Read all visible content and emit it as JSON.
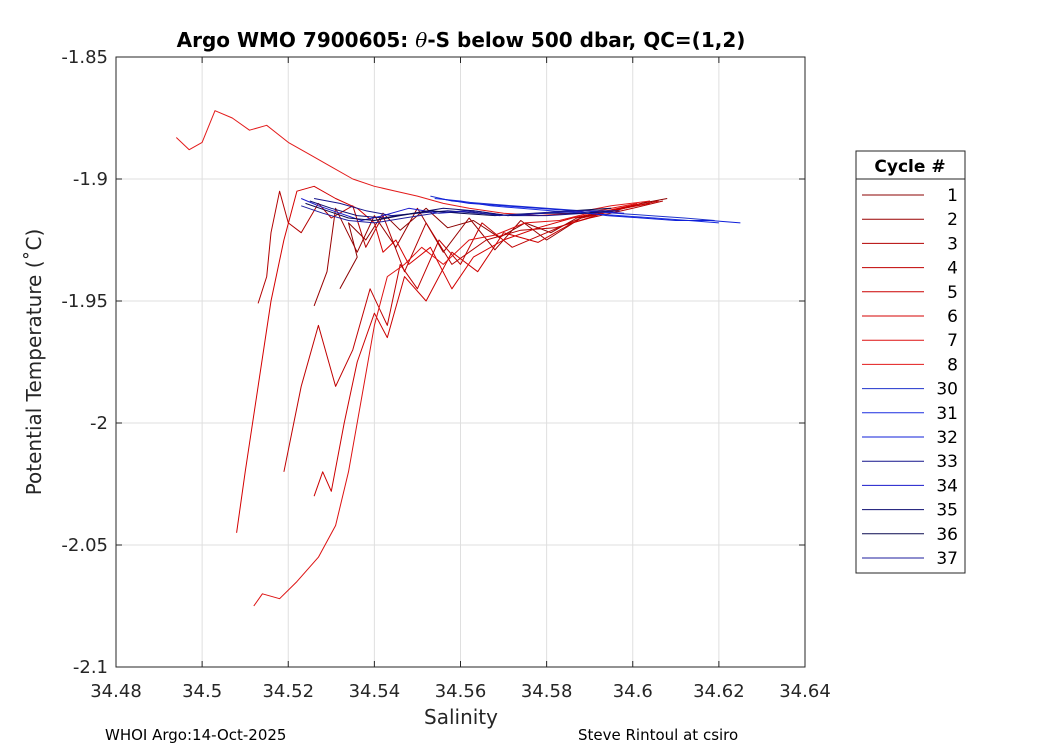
{
  "chart_data": {
    "type": "line",
    "title_prefix": "Argo WMO 7900605: ",
    "title_theta": "θ",
    "title_suffix": "-S below 500 dbar,  QC=(1,2)",
    "xlabel": "Salinity",
    "ylabel": "Potential Temperature (˚C)",
    "xlim": [
      34.48,
      34.64
    ],
    "ylim": [
      -2.1,
      -1.85
    ],
    "xticks": [
      "34.48",
      "34.5",
      "34.52",
      "34.54",
      "34.56",
      "34.58",
      "34.6",
      "34.62",
      "34.64"
    ],
    "yticks": [
      "-1.85",
      "-1.9",
      "-1.95",
      "-2",
      "-2.05",
      "-2.1"
    ],
    "grid": true,
    "legend_title": "Cycle #",
    "legend_position": "outside-right",
    "series": [
      {
        "name": "1",
        "color": "#8b0000",
        "x": [
          34.532,
          34.536,
          34.534,
          34.538,
          34.542,
          34.546,
          34.552,
          34.557,
          34.563,
          34.569,
          34.575,
          34.581,
          34.587,
          34.595,
          34.602,
          34.608
        ],
        "y": [
          -1.945,
          -1.932,
          -1.918,
          -1.925,
          -1.914,
          -1.921,
          -1.912,
          -1.92,
          -1.917,
          -1.924,
          -1.918,
          -1.922,
          -1.916,
          -1.913,
          -1.91,
          -1.908
        ]
      },
      {
        "name": "2",
        "color": "#990000",
        "x": [
          34.526,
          34.529,
          34.531,
          34.536,
          34.54,
          34.545,
          34.55,
          34.556,
          34.562,
          34.568,
          34.574,
          34.58,
          34.588,
          34.596,
          34.604
        ],
        "y": [
          -1.952,
          -1.938,
          -1.912,
          -1.93,
          -1.915,
          -1.928,
          -1.912,
          -1.93,
          -1.916,
          -1.929,
          -1.917,
          -1.925,
          -1.916,
          -1.913,
          -1.909
        ]
      },
      {
        "name": "3",
        "color": "#b30000",
        "x": [
          34.513,
          34.515,
          34.516,
          34.518,
          34.52,
          34.523,
          34.527,
          34.53,
          34.535,
          34.538,
          34.542,
          34.547,
          34.552,
          34.558,
          34.566,
          34.574,
          34.582,
          34.59,
          34.6,
          34.607
        ],
        "y": [
          -1.951,
          -1.94,
          -1.922,
          -1.905,
          -1.918,
          -1.922,
          -1.91,
          -1.916,
          -1.911,
          -1.928,
          -1.915,
          -1.938,
          -1.918,
          -1.935,
          -1.925,
          -1.921,
          -1.92,
          -1.916,
          -1.912,
          -1.909
        ]
      },
      {
        "name": "4",
        "color": "#c00000",
        "x": [
          34.519,
          34.523,
          34.527,
          34.531,
          34.535,
          34.539,
          34.543,
          34.546,
          34.55,
          34.555,
          34.56,
          34.565,
          34.572,
          34.58,
          34.588,
          34.598,
          34.606
        ],
        "y": [
          -2.02,
          -1.985,
          -1.96,
          -1.985,
          -1.97,
          -1.945,
          -1.96,
          -1.935,
          -1.945,
          -1.925,
          -1.935,
          -1.918,
          -1.928,
          -1.922,
          -1.916,
          -1.912,
          -1.909
        ]
      },
      {
        "name": "5",
        "color": "#cc0000",
        "x": [
          34.526,
          34.528,
          34.53,
          34.533,
          34.536,
          34.54,
          34.543,
          34.547,
          34.552,
          34.558,
          34.564,
          34.57,
          34.578,
          34.586,
          34.595,
          34.604
        ],
        "y": [
          -2.03,
          -2.02,
          -2.028,
          -2.0,
          -1.975,
          -1.955,
          -1.965,
          -1.94,
          -1.95,
          -1.93,
          -1.938,
          -1.922,
          -1.926,
          -1.918,
          -1.913,
          -1.91
        ]
      },
      {
        "name": "6",
        "color": "#d40000",
        "x": [
          34.508,
          34.51,
          34.513,
          34.516,
          34.519,
          34.522,
          34.526,
          34.531,
          34.536,
          34.54,
          34.542,
          34.545,
          34.548,
          34.553,
          34.558,
          34.563,
          34.57,
          34.578,
          34.586,
          34.594,
          34.602
        ],
        "y": [
          -2.045,
          -2.02,
          -1.985,
          -1.95,
          -1.925,
          -1.905,
          -1.903,
          -1.908,
          -1.912,
          -1.918,
          -1.93,
          -1.925,
          -1.935,
          -1.928,
          -1.945,
          -1.932,
          -1.925,
          -1.92,
          -1.916,
          -1.913,
          -1.91
        ]
      },
      {
        "name": "7",
        "color": "#dd1111",
        "x": [
          34.512,
          34.514,
          34.518,
          34.522,
          34.527,
          34.531,
          34.534,
          34.537,
          34.54,
          34.543,
          34.547,
          34.551,
          34.556,
          34.562,
          34.568,
          34.575,
          34.583,
          34.592,
          34.601
        ],
        "y": [
          -2.075,
          -2.07,
          -2.072,
          -2.065,
          -2.055,
          -2.042,
          -2.02,
          -1.99,
          -1.96,
          -1.94,
          -1.935,
          -1.928,
          -1.935,
          -1.925,
          -1.923,
          -1.918,
          -1.917,
          -1.913,
          -1.91
        ]
      },
      {
        "name": "8",
        "color": "#e31a1a",
        "x": [
          34.494,
          34.497,
          34.5,
          34.503,
          34.507,
          34.511,
          34.515,
          34.52,
          34.525,
          34.53,
          34.535,
          34.54,
          34.545,
          34.55,
          34.556,
          34.562,
          34.57,
          34.578,
          34.586,
          34.595,
          34.604
        ],
        "y": [
          -1.883,
          -1.888,
          -1.885,
          -1.872,
          -1.875,
          -1.88,
          -1.878,
          -1.885,
          -1.89,
          -1.895,
          -1.9,
          -1.903,
          -1.905,
          -1.907,
          -1.91,
          -1.912,
          -1.914,
          -1.915,
          -1.914,
          -1.911,
          -1.909
        ]
      },
      {
        "name": "30",
        "color": "#1f33cc",
        "x": [
          34.553,
          34.558,
          34.565,
          34.572,
          34.58,
          34.588,
          34.596,
          34.604,
          34.612,
          34.619
        ],
        "y": [
          -1.907,
          -1.909,
          -1.91,
          -1.911,
          -1.912,
          -1.913,
          -1.914,
          -1.915,
          -1.916,
          -1.917
        ]
      },
      {
        "name": "31",
        "color": "#1a2ee0",
        "x": [
          34.554,
          34.56,
          34.567,
          34.574,
          34.581,
          34.589,
          34.597,
          34.605,
          34.613,
          34.62
        ],
        "y": [
          -1.908,
          -1.909,
          -1.911,
          -1.912,
          -1.913,
          -1.914,
          -1.915,
          -1.916,
          -1.917,
          -1.918
        ]
      },
      {
        "name": "32",
        "color": "#0f1fd9",
        "x": [
          34.555,
          34.562,
          34.57,
          34.578,
          34.586,
          34.594,
          34.602,
          34.61,
          34.618,
          34.625
        ],
        "y": [
          -1.908,
          -1.91,
          -1.911,
          -1.912,
          -1.913,
          -1.915,
          -1.916,
          -1.917,
          -1.917,
          -1.918
        ]
      },
      {
        "name": "33",
        "color": "#14148c",
        "x": [
          34.526,
          34.532,
          34.538,
          34.544,
          34.55,
          34.557,
          34.564,
          34.572,
          34.58,
          34.589,
          34.597
        ],
        "y": [
          -1.908,
          -1.91,
          -1.913,
          -1.915,
          -1.914,
          -1.913,
          -1.914,
          -1.915,
          -1.915,
          -1.914,
          -1.913
        ]
      },
      {
        "name": "34",
        "color": "#1a1acc",
        "x": [
          34.523,
          34.527,
          34.532,
          34.537,
          34.542,
          34.548,
          34.555,
          34.563,
          34.571,
          34.58,
          34.589,
          34.598
        ],
        "y": [
          -1.908,
          -1.911,
          -1.914,
          -1.917,
          -1.915,
          -1.912,
          -1.914,
          -1.913,
          -1.915,
          -1.914,
          -1.913,
          -1.914
        ]
      },
      {
        "name": "35",
        "color": "#0d0d70",
        "x": [
          34.525,
          34.53,
          34.536,
          34.542,
          34.549,
          34.556,
          34.563,
          34.571,
          34.579,
          34.588,
          34.596
        ],
        "y": [
          -1.909,
          -1.912,
          -1.915,
          -1.916,
          -1.914,
          -1.912,
          -1.913,
          -1.915,
          -1.914,
          -1.914,
          -1.913
        ]
      },
      {
        "name": "36",
        "color": "#0a0a50",
        "x": [
          34.524,
          34.529,
          34.534,
          34.54,
          34.546,
          34.553,
          34.56,
          34.568,
          34.577,
          34.586,
          34.595
        ],
        "y": [
          -1.91,
          -1.913,
          -1.916,
          -1.917,
          -1.915,
          -1.913,
          -1.914,
          -1.915,
          -1.914,
          -1.913,
          -1.912
        ]
      },
      {
        "name": "37",
        "color": "#1e1e9e",
        "x": [
          34.523,
          34.528,
          34.534,
          34.54,
          34.547,
          34.554,
          34.561,
          34.569,
          34.578,
          34.587,
          34.596
        ],
        "y": [
          -1.911,
          -1.914,
          -1.917,
          -1.918,
          -1.916,
          -1.914,
          -1.913,
          -1.915,
          -1.914,
          -1.913,
          -1.913
        ]
      }
    ]
  },
  "footer": {
    "left": "WHOI Argo:14-Oct-2025",
    "right": "Steve Rintoul at csiro"
  }
}
